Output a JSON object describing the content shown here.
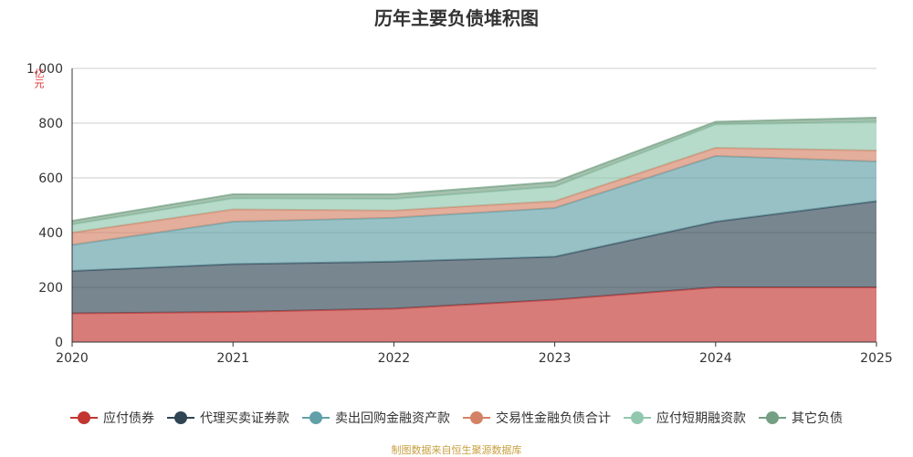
{
  "chart_data": {
    "type": "area",
    "stacked": true,
    "title": "历年主要负债堆积图",
    "ylabel": "亿元",
    "x": [
      "2020",
      "2021",
      "2022",
      "2023",
      "2024",
      "2025"
    ],
    "ylim": [
      0,
      1000
    ],
    "yticks": [
      "0",
      "200",
      "400",
      "600",
      "800",
      "1,000"
    ],
    "grid": true,
    "legend_position": "bottom",
    "series": [
      {
        "name": "应付债券",
        "color": "#c23531",
        "values": [
          105,
          110,
          122,
          155,
          200,
          200
        ]
      },
      {
        "name": "代理买卖证券款",
        "color": "#2f4554",
        "values": [
          155,
          175,
          172,
          157,
          240,
          315
        ]
      },
      {
        "name": "卖出回购金融资产款",
        "color": "#61a0a8",
        "values": [
          95,
          155,
          160,
          178,
          240,
          145
        ]
      },
      {
        "name": "交易性金融负债合计",
        "color": "#d48265",
        "values": [
          45,
          45,
          27,
          25,
          30,
          40
        ]
      },
      {
        "name": "应付短期融资款",
        "color": "#91c7ae",
        "values": [
          30,
          40,
          42,
          53,
          85,
          105
        ]
      },
      {
        "name": "其它负债",
        "color": "#749f83",
        "values": [
          13,
          15,
          17,
          17,
          10,
          15
        ]
      }
    ]
  },
  "source_text": "制图数据来自恒生聚源数据库"
}
